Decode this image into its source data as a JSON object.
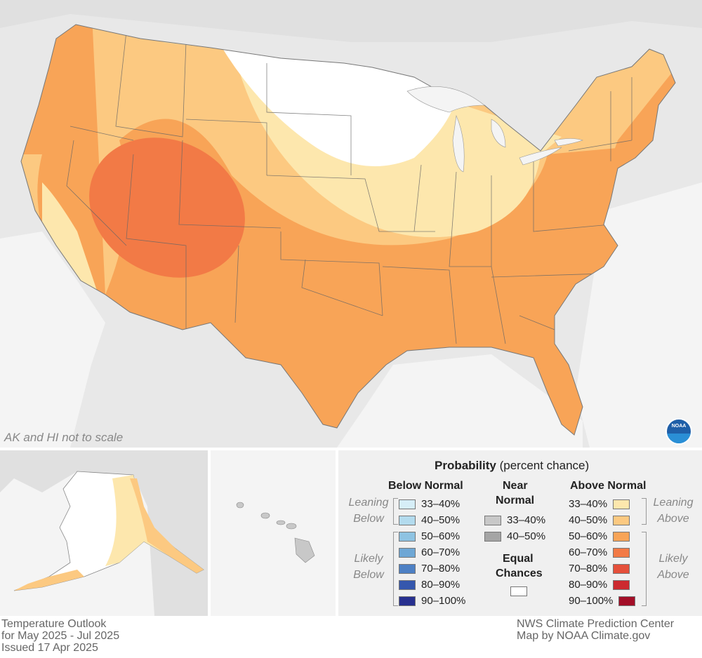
{
  "map": {
    "scale_note": "AK and HI not to scale",
    "logo_text": "NOAA"
  },
  "legend": {
    "title_bold": "Probability",
    "title_rest": "(percent chance)",
    "below_header": "Below Normal",
    "near_header_1": "Near",
    "near_header_2": "Normal",
    "above_header": "Above Normal",
    "leaning_below_1": "Leaning",
    "leaning_below_2": "Below",
    "likely_below_1": "Likely",
    "likely_below_2": "Below",
    "leaning_above_1": "Leaning",
    "leaning_above_2": "Above",
    "likely_above_1": "Likely",
    "likely_above_2": "Above",
    "equal_1": "Equal",
    "equal_2": "Chances",
    "below": [
      {
        "label": "33–40%",
        "color": "#d6eef7"
      },
      {
        "label": "40–50%",
        "color": "#b3dbee"
      },
      {
        "label": "50–60%",
        "color": "#8ec3e2"
      },
      {
        "label": "60–70%",
        "color": "#6ea7d5"
      },
      {
        "label": "70–80%",
        "color": "#4d80c4"
      },
      {
        "label": "80–90%",
        "color": "#3557ad"
      },
      {
        "label": "90–100%",
        "color": "#27308f"
      }
    ],
    "near": [
      {
        "label": "33–40%",
        "color": "#c8c8c8"
      },
      {
        "label": "40–50%",
        "color": "#a5a5a5"
      }
    ],
    "above": [
      {
        "label": "33–40%",
        "color": "#fde7ad"
      },
      {
        "label": "40–50%",
        "color": "#fcc981"
      },
      {
        "label": "50–60%",
        "color": "#f8a457"
      },
      {
        "label": "60–70%",
        "color": "#f27a46"
      },
      {
        "label": "70–80%",
        "color": "#e5503b"
      },
      {
        "label": "80–90%",
        "color": "#cc2a2f"
      },
      {
        "label": "90–100%",
        "color": "#a30e27"
      }
    ],
    "equal_color": "#ffffff"
  },
  "footer": {
    "left_1": "Temperature Outlook",
    "left_2": "for May 2025 - Jul 2025",
    "left_3": "Issued 17 Apr 2025",
    "right_1": "NWS Climate Prediction Center",
    "right_2": "Map by NOAA Climate.gov"
  }
}
